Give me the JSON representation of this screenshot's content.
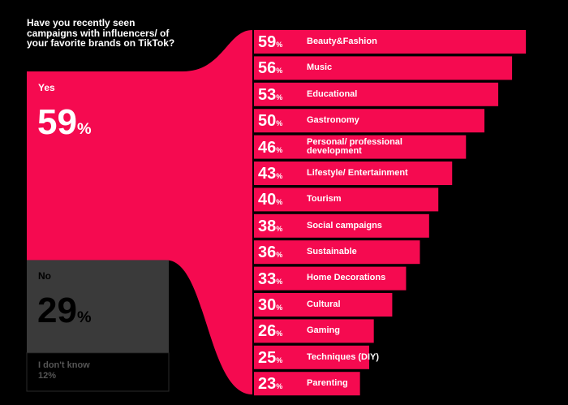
{
  "chart_data": [
    {
      "type": "stacked-column",
      "title": "Have you recently seen campaigns with influencers/ of your favorite brands on TikTok?",
      "categories": [
        "Yes",
        "No",
        "I don't know"
      ],
      "values": [
        59,
        29,
        12
      ],
      "value_labels": [
        "59%",
        "29%",
        "12%"
      ],
      "colors": [
        "#f50a50",
        "#3a3a3a",
        "#000000"
      ]
    },
    {
      "type": "bar",
      "categories": [
        "Beauty&Fashion",
        "Music",
        "Educational",
        "Gastronomy",
        "Personal/ professional development",
        "Lifestyle/ Entertainment",
        "Tourism",
        "Social campaigns",
        "Sustainable",
        "Home Decorations",
        "Cultural",
        "Gaming",
        "Techniques (DIY)",
        "Parenting"
      ],
      "values": [
        59,
        56,
        53,
        50,
        46,
        43,
        40,
        38,
        36,
        33,
        30,
        26,
        25,
        23
      ],
      "value_labels": [
        "59%",
        "56%",
        "53%",
        "50%",
        "46%",
        "43%",
        "40%",
        "38%",
        "36%",
        "33%",
        "30%",
        "26%",
        "25%",
        "23%"
      ],
      "color": "#f50a50"
    }
  ]
}
